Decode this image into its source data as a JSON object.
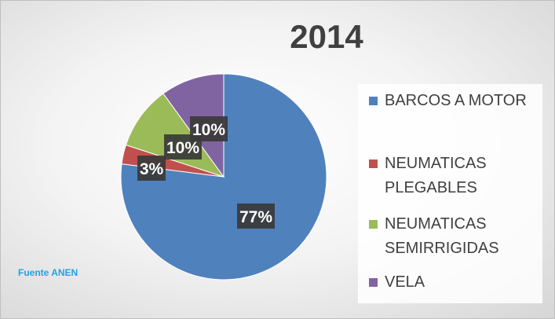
{
  "chart_data": {
    "type": "pie",
    "title": "2014",
    "categories": [
      "BARCOS A MOTOR",
      "NEUMATICAS PLEGABLES",
      "NEUMATICAS SEMIRRIGIDAS",
      "VELA"
    ],
    "values": [
      77,
      3,
      10,
      10
    ],
    "value_labels": [
      "77%",
      "3%",
      "10%",
      "10%"
    ],
    "colors": [
      "#4f81bd",
      "#c0504d",
      "#9bbb59",
      "#8064a2"
    ],
    "legend": "right",
    "annotation": "Fuente ANEN"
  }
}
